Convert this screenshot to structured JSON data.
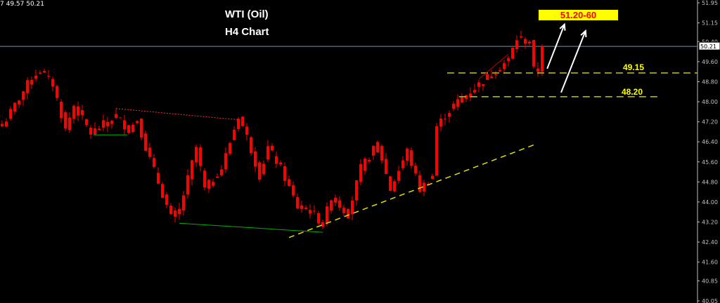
{
  "header": {
    "ohlc_text": "7 49.57 50.21"
  },
  "annotations": {
    "title": "WTI (Oil)",
    "subtitle": "H4 Chart",
    "target_label": "51.20-60",
    "level_1": "49.15",
    "level_2": "48.20"
  },
  "colors": {
    "background": "#000000",
    "candle": "#ff0000",
    "level": "#c8c800",
    "target_box": "#ffff00",
    "target_text": "#ff0000",
    "trendline": "#e0e000",
    "axis_text": "#c0c0c0"
  },
  "chart_data": {
    "type": "candlestick",
    "symbol": "WTI (Oil)",
    "timeframe": "H4",
    "yaxis": {
      "ticks": [
        51.95,
        51.15,
        50.4,
        49.6,
        48.8,
        48.0,
        47.2,
        46.4,
        45.6,
        44.8,
        44.0,
        43.2,
        42.4,
        41.6,
        40.85,
        40.05
      ],
      "range": [
        40.05,
        51.95
      ],
      "side": "right"
    },
    "current_price": "50.21",
    "close_path": [
      [
        0,
        47.02
      ],
      [
        7,
        48.98
      ],
      [
        9,
        49.26
      ],
      [
        12,
        48.7
      ],
      [
        15,
        46.88
      ],
      [
        17,
        47.86
      ],
      [
        21,
        46.74
      ],
      [
        27,
        47.44
      ],
      [
        30,
        46.88
      ],
      [
        32,
        47.3
      ],
      [
        34,
        46.18
      ],
      [
        37,
        44.78
      ],
      [
        40,
        43.38
      ],
      [
        42,
        43.66
      ],
      [
        46,
        46.18
      ],
      [
        48,
        44.5
      ],
      [
        52,
        45.34
      ],
      [
        56,
        47.44
      ],
      [
        58,
        46.6
      ],
      [
        61,
        45.06
      ],
      [
        63,
        46.18
      ],
      [
        66,
        45.34
      ],
      [
        70,
        43.8
      ],
      [
        73,
        43.66
      ],
      [
        76,
        43.1
      ],
      [
        78,
        44.22
      ],
      [
        82,
        43.52
      ],
      [
        85,
        45.34
      ],
      [
        89,
        46.32
      ],
      [
        92,
        44.5
      ],
      [
        96,
        46.04
      ],
      [
        99,
        44.5
      ],
      [
        102,
        45.06
      ],
      [
        103,
        47.02
      ],
      [
        107,
        47.86
      ],
      [
        110,
        48.28
      ],
      [
        113,
        48.7
      ],
      [
        117,
        49.26
      ],
      [
        120,
        49.68
      ],
      [
        122,
        50.52
      ],
      [
        125,
        50.38
      ],
      [
        126,
        49.26
      ],
      [
        127,
        49.26
      ],
      [
        128,
        50.21
      ]
    ],
    "levels": [
      {
        "label": "49.15",
        "price": 49.15,
        "from_bar": 105.5,
        "style": "dashed"
      },
      {
        "label": "48.20",
        "price": 48.2,
        "from_bar": 108.3,
        "to_bar": 156,
        "style": "dashed"
      }
    ],
    "trendlines": [
      {
        "color": "#e0e000",
        "style": "dashed",
        "points": [
          [
            68,
            42.58
          ],
          [
            126.7,
            46.32
          ]
        ]
      },
      {
        "color": "#ff3030",
        "style": "dotted",
        "points": [
          [
            27,
            47.73
          ],
          [
            56,
            47.28
          ]
        ]
      },
      {
        "color": "#00b000",
        "style": "solid",
        "points": [
          [
            42,
            43.15
          ],
          [
            76,
            42.79
          ]
        ]
      },
      {
        "color": "#00b000",
        "style": "solid",
        "points": [
          [
            21.7,
            46.68
          ],
          [
            29.7,
            46.68
          ]
        ]
      },
      {
        "color": "#c00000",
        "style": "solid",
        "points": [
          [
            113,
            48.9
          ],
          [
            120,
            49.9
          ]
        ]
      }
    ],
    "arrows": [
      {
        "from": [
          129.2,
          49.32
        ],
        "to": [
          133.3,
          51.09
        ]
      },
      {
        "from": [
          132.5,
          48.37
        ],
        "to": [
          138.3,
          50.83
        ]
      }
    ]
  }
}
